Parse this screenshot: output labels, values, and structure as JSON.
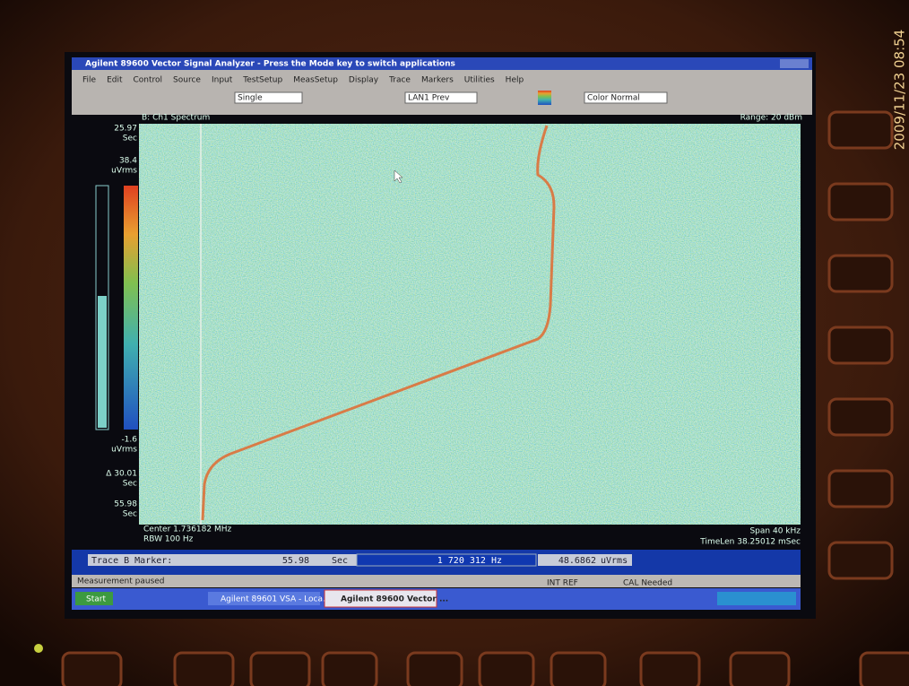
{
  "window": {
    "title": "Agilent 89600 Vector Signal Analyzer - Press the Mode key to switch applications",
    "menu": [
      "File",
      "Edit",
      "Control",
      "Source",
      "Input",
      "TestSetup",
      "MeasSetup",
      "Display",
      "Trace",
      "Markers",
      "Utilities",
      "Help"
    ],
    "toolbar": [
      "Single",
      "LAN1 Prev",
      "Color Normal"
    ]
  },
  "trace": {
    "title": "B: Ch1 Spectrum",
    "range": "Range: 20 dBm",
    "labels": {
      "start_time": "25.97",
      "start_unit": "Sec",
      "top_value": "38.4",
      "top_unit": "uVrms",
      "bottom_value": "-1.6",
      "bottom_unit": "uVrms",
      "delta": "Δ 30.01",
      "delta_unit": "Sec",
      "end_time": "55.98",
      "end_unit": "Sec"
    },
    "center": "Center 1.736182 MHz",
    "rbw": "RBW 100 Hz",
    "span": "Span 40 kHz",
    "timelen": "TimeLen 38.25012 mSec"
  },
  "marker_bar": {
    "label": "Trace B  Marker:",
    "time": "55.98",
    "time_unit": "Sec",
    "frequency": "1 720 312 Hz",
    "amplitude": "48.6862",
    "amplitude_unit": "uVrms"
  },
  "status": {
    "message": "Measurement paused",
    "reference": "INT REF",
    "calibration": "CAL Needed"
  },
  "taskbar": {
    "start": "Start",
    "items": [
      "Agilent 89601 VSA - Loca...",
      "Agilent 89600 Vector ..."
    ]
  },
  "timestamp": "2009/11/23 08:54"
}
